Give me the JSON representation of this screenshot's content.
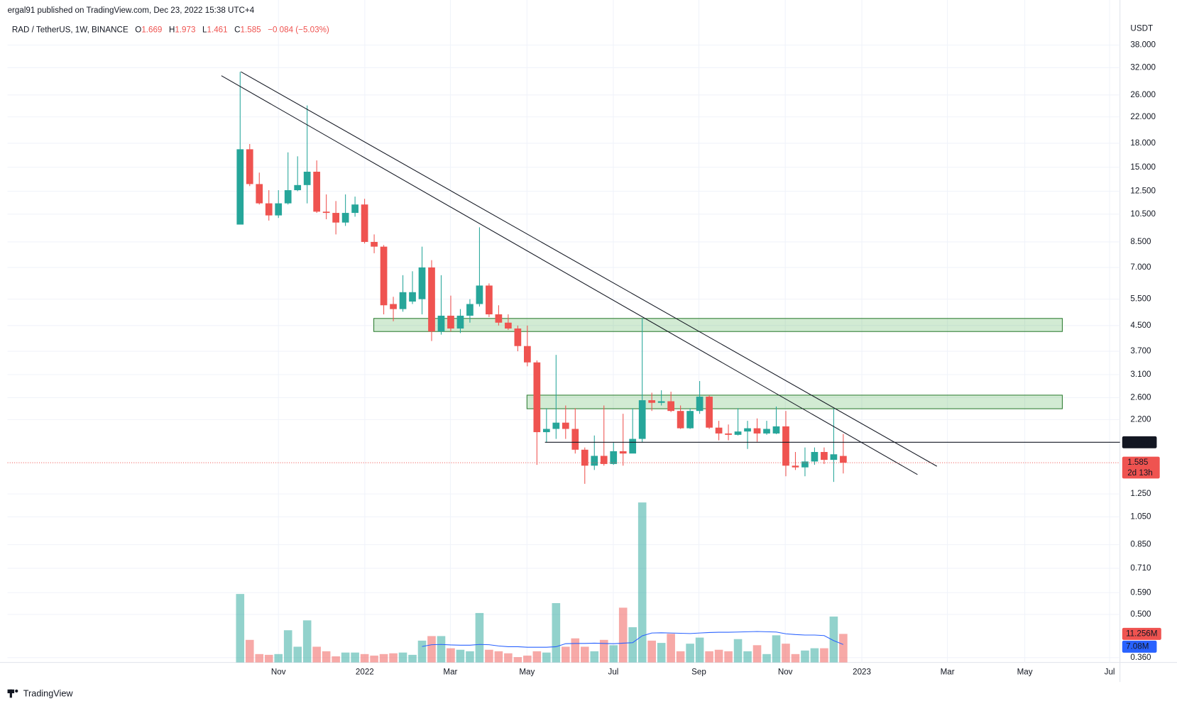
{
  "chart_data": {
    "type": "candlestick",
    "publisher": "ergal91 published on TradingView.com, Dec 23, 2022 15:38 UTC+4",
    "symbol": "RAD / TetherUS, 1W, BINANCE",
    "ohlc_letters": {
      "open": "O",
      "high": "H",
      "low": "L",
      "close": "C"
    },
    "change_label": "−0.084 (−5.03%)",
    "currency": "USDT",
    "countdown": "2d 13h",
    "brand": "TradingView",
    "log_scale": true,
    "grid": true,
    "up_color": "#26a69a",
    "down_color": "#ef5350",
    "xlim": [
      -24.3,
      91.9
    ],
    "xticks": [
      {
        "value": 4.0,
        "label": "Nov"
      },
      {
        "value": 13.02,
        "label": "2022"
      },
      {
        "value": 21.96,
        "label": "Mar"
      },
      {
        "value": 29.96,
        "label": "May"
      },
      {
        "value": 38.98,
        "label": "Jul"
      },
      {
        "value": 47.92,
        "label": "Sep"
      },
      {
        "value": 56.94,
        "label": "Nov"
      },
      {
        "value": 64.94,
        "label": "2023"
      },
      {
        "value": 73.88,
        "label": "Mar"
      },
      {
        "value": 81.96,
        "label": "May"
      },
      {
        "value": 90.82,
        "label": "Jul"
      }
    ],
    "ylim": [
      0.347,
      45.1
    ],
    "yticks": [
      {
        "value": 38,
        "label": "38.000"
      },
      {
        "value": 32,
        "label": "32.000"
      },
      {
        "value": 26,
        "label": "26.000"
      },
      {
        "value": 22,
        "label": "22.000"
      },
      {
        "value": 18,
        "label": "18.000"
      },
      {
        "value": 15,
        "label": "15.000"
      },
      {
        "value": 12.5,
        "label": "12.500"
      },
      {
        "value": 10.5,
        "label": "10.500"
      },
      {
        "value": 8.5,
        "label": "8.500"
      },
      {
        "value": 7,
        "label": "7.000"
      },
      {
        "value": 5.5,
        "label": "5.500"
      },
      {
        "value": 4.5,
        "label": "4.500"
      },
      {
        "value": 3.7,
        "label": "3.700"
      },
      {
        "value": 3.1,
        "label": "3.100"
      },
      {
        "value": 2.6,
        "label": "2.600"
      },
      {
        "value": 2.2,
        "label": "2.200"
      },
      {
        "value": 1.25,
        "label": "1.250"
      },
      {
        "value": 1.05,
        "label": "1.050"
      },
      {
        "value": 0.85,
        "label": "0.850"
      },
      {
        "value": 0.71,
        "label": "0.710"
      },
      {
        "value": 0.59,
        "label": "0.590"
      },
      {
        "value": 0.5,
        "label": "0.500"
      },
      {
        "value": 0.36,
        "label": "0.360"
      }
    ],
    "open": [
      9.7,
      17.2,
      13.2,
      11.4,
      10.4,
      11.4,
      12.6,
      13.1,
      14.5,
      10.7,
      10.6,
      9.85,
      10.6,
      11.3,
      8.5,
      8.2,
      5.3,
      5.1,
      5.4,
      5.5,
      7.0,
      4.3,
      4.85,
      4.4,
      4.85,
      5.3,
      6.1,
      4.9,
      4.6,
      4.4,
      3.85,
      3.4,
      2.0,
      2.05,
      2.15,
      2.05,
      1.75,
      1.55,
      1.67,
      1.57,
      1.73,
      1.7,
      1.9,
      2.55,
      2.5,
      2.53,
      2.35,
      2.06,
      2.35,
      2.62,
      2.07,
      1.98,
      1.96,
      2.01,
      2.06,
      1.98,
      1.98,
      2.09,
      1.55,
      1.53,
      1.6,
      1.72,
      1.62,
      1.669
    ],
    "high": [
      31.0,
      17.9,
      14.4,
      12.6,
      12.6,
      16.8,
      16.3,
      24.0,
      15.8,
      12.2,
      11.6,
      12.2,
      12.0,
      11.8,
      9.0,
      8.3,
      5.6,
      6.6,
      6.8,
      8.2,
      7.4,
      6.6,
      5.65,
      5.1,
      5.5,
      9.5,
      6.2,
      5.25,
      4.9,
      4.5,
      4.5,
      3.45,
      2.4,
      3.6,
      2.45,
      2.4,
      1.78,
      1.95,
      2.45,
      1.85,
      2.3,
      2.4,
      4.75,
      2.7,
      2.75,
      2.72,
      2.45,
      2.4,
      2.95,
      2.65,
      2.18,
      2.12,
      2.4,
      2.18,
      2.22,
      2.18,
      2.43,
      2.35,
      1.72,
      1.78,
      1.78,
      1.78,
      2.39,
      1.973
    ],
    "low": [
      9.7,
      13.0,
      11.3,
      10.0,
      10.2,
      11.3,
      12.5,
      11.4,
      10.6,
      10.1,
      9.0,
      9.6,
      10.3,
      8.4,
      7.8,
      4.9,
      4.65,
      5.0,
      5.3,
      4.9,
      4.0,
      4.2,
      4.3,
      4.25,
      4.6,
      5.2,
      4.8,
      4.5,
      4.35,
      3.7,
      3.3,
      1.56,
      1.85,
      1.9,
      1.9,
      1.7,
      1.35,
      1.5,
      1.55,
      1.56,
      1.55,
      1.72,
      1.85,
      2.35,
      2.45,
      2.33,
      2.05,
      2.05,
      2.3,
      2.05,
      1.88,
      1.88,
      1.95,
      1.76,
      1.86,
      1.96,
      1.97,
      1.43,
      1.5,
      1.43,
      1.56,
      1.57,
      1.37,
      1.461
    ],
    "close": [
      17.2,
      13.2,
      11.4,
      10.4,
      11.4,
      12.6,
      13.1,
      14.5,
      10.7,
      10.6,
      9.85,
      10.6,
      11.3,
      8.5,
      8.2,
      5.25,
      5.1,
      5.8,
      5.8,
      7.0,
      4.3,
      4.85,
      4.4,
      4.85,
      5.3,
      6.1,
      4.9,
      4.6,
      4.4,
      3.85,
      3.4,
      2.0,
      2.05,
      2.15,
      2.05,
      1.75,
      1.55,
      1.67,
      1.57,
      1.73,
      1.7,
      1.9,
      2.55,
      2.5,
      2.53,
      2.35,
      2.06,
      2.35,
      2.62,
      2.07,
      1.98,
      1.96,
      2.01,
      2.06,
      1.98,
      2.05,
      2.09,
      1.55,
      1.53,
      1.6,
      1.72,
      1.62,
      1.69,
      1.585
    ],
    "volume": {
      "values": [
        27.0,
        8.9,
        3.3,
        3.0,
        3.3,
        12.7,
        6.2,
        16.6,
        6.2,
        4.4,
        2.4,
        3.9,
        3.9,
        3.3,
        2.7,
        3.3,
        3.6,
        3.9,
        3.0,
        8.6,
        10.4,
        10.4,
        5.6,
        5.0,
        4.4,
        19.5,
        5.0,
        4.4,
        3.6,
        2.1,
        2.7,
        4.4,
        3.9,
        23.4,
        6.2,
        9.5,
        6.2,
        4.4,
        8.9,
        6.8,
        21.6,
        13.9,
        63.1,
        8.6,
        7.7,
        11.3,
        4.4,
        7.4,
        9.8,
        4.4,
        5.0,
        4.4,
        9.2,
        4.4,
        6.8,
        3.3,
        10.7,
        7.4,
        3.3,
        4.7,
        5.6,
        5.6,
        18.1,
        11.256
      ],
      "value_labels": [
        null,
        null,
        null,
        null,
        null,
        null,
        null,
        null,
        null,
        null,
        null,
        null,
        null,
        null,
        null,
        null,
        null,
        null,
        null,
        null,
        null,
        null,
        null,
        null,
        null,
        null,
        null,
        null,
        null,
        null,
        null,
        null,
        null,
        null,
        null,
        null,
        null,
        null,
        null,
        null,
        null,
        null,
        null,
        null,
        null,
        null,
        null,
        null,
        null,
        null,
        null,
        null,
        null,
        null,
        null,
        null,
        null,
        null,
        null,
        null,
        null,
        null,
        null,
        "11.256M"
      ]
    },
    "volume_ma": {
      "color": "#2962ff",
      "values": [
        null,
        null,
        null,
        null,
        null,
        null,
        null,
        null,
        null,
        null,
        null,
        null,
        null,
        null,
        null,
        null,
        null,
        null,
        null,
        6.3,
        7.0,
        7.1,
        6.9,
        6.8,
        6.8,
        7.1,
        7.0,
        6.5,
        6.2,
        6.2,
        6.0,
        6.0,
        6.0,
        6.2,
        7.4,
        7.5,
        7.5,
        7.6,
        7.5,
        7.4,
        7.6,
        7.8,
        10.5,
        11.6,
        11.7,
        11.6,
        11.5,
        11.4,
        11.6,
        11.8,
        11.9,
        11.9,
        12.0,
        12.1,
        12.2,
        12.1,
        12.0,
        11.3,
        11.0,
        10.8,
        10.8,
        10.6,
        8.6,
        7.08
      ],
      "value_labels": [
        null,
        null,
        null,
        null,
        null,
        null,
        null,
        null,
        null,
        null,
        null,
        null,
        null,
        null,
        null,
        null,
        null,
        null,
        null,
        null,
        null,
        null,
        null,
        null,
        null,
        null,
        null,
        null,
        null,
        null,
        null,
        null,
        null,
        null,
        null,
        null,
        null,
        null,
        null,
        null,
        null,
        null,
        null,
        null,
        null,
        null,
        null,
        null,
        null,
        null,
        null,
        null,
        null,
        null,
        null,
        null,
        null,
        null,
        null,
        null,
        null,
        null,
        null,
        "7.08M"
      ]
    },
    "trendlines": [
      {
        "x": [
          -1.96,
          70.75
        ],
        "y": [
          30.1,
          1.449
        ]
      },
      {
        "x": [
          0.08,
          72.78
        ],
        "y": [
          31.0,
          1.543
        ]
      }
    ],
    "zones": [
      {
        "x": [
          13.96,
          85.88
        ],
        "y": [
          4.3,
          4.75
        ]
      },
      {
        "x": [
          29.96,
          85.88
        ],
        "y": [
          2.39,
          2.65
        ]
      }
    ],
    "level": {
      "x": 31.84,
      "value": 1.852
    }
  }
}
